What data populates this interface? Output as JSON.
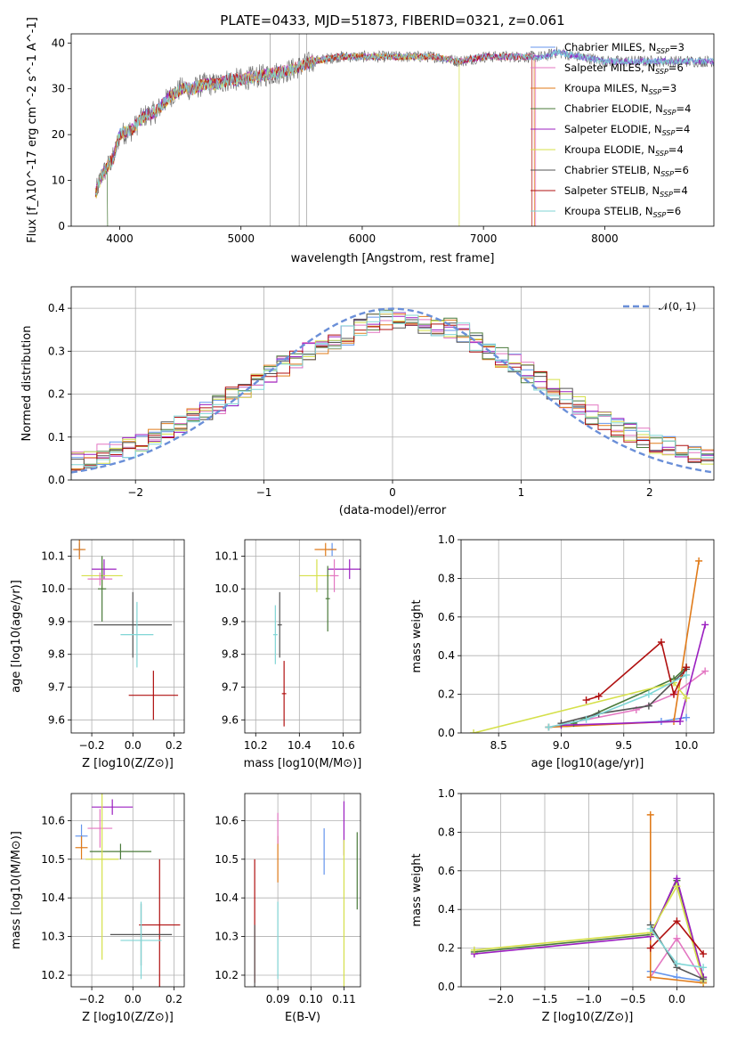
{
  "colors": [
    "#6495ed",
    "#e377c2",
    "#e07b1a",
    "#4a7a3a",
    "#9b1fc0",
    "#d5e04a",
    "#555555",
    "#b01010",
    "#80d6d6"
  ],
  "chart_data": [
    {
      "id": "spectrum",
      "type": "line",
      "title": "PLATE=0433, MJD=51873, FIBERID=0321, z=0.061",
      "xlabel": "wavelength [Angstrom, rest frame]",
      "ylabel": "Flux [f_λ10^-17 erg cm^-2 s^-1 A^-1]",
      "xlim": [
        3600,
        8900
      ],
      "ylim": [
        0,
        42
      ],
      "xticks": [
        "4000",
        "5000",
        "6000",
        "7000",
        "8000"
      ],
      "yticks": [
        "0",
        "10",
        "20",
        "30",
        "40"
      ],
      "grid": false,
      "legend_position": "top-right",
      "legend": [
        {
          "name": "Chabrier MILES",
          "nssp": "3"
        },
        {
          "name": "Salpeter MILES",
          "nssp": "6"
        },
        {
          "name": "Kroupa MILES",
          "nssp": "3"
        },
        {
          "name": "Chabrier ELODIE",
          "nssp": "4"
        },
        {
          "name": "Salpeter ELODIE",
          "nssp": "4"
        },
        {
          "name": "Kroupa ELODIE",
          "nssp": "4"
        },
        {
          "name": "Chabrier STELIB",
          "nssp": "6"
        },
        {
          "name": "Salpeter STELIB",
          "nssp": "4"
        },
        {
          "name": "Kroupa STELIB",
          "nssp": "6"
        }
      ],
      "continuum": {
        "x": [
          3800,
          3850,
          3900,
          3950,
          4000,
          4100,
          4200,
          4300,
          4400,
          4500,
          4600,
          4700,
          4800,
          4900,
          5000,
          5200,
          5400,
          5600,
          5800,
          6000,
          6200,
          6400,
          6600,
          6800,
          7000,
          7200,
          7400,
          7500,
          7600,
          7800,
          8000,
          8200,
          8400,
          8600,
          8800
        ],
        "y": [
          7,
          11,
          13,
          15,
          20,
          21,
          24,
          25,
          28,
          30,
          30,
          31,
          31,
          32,
          32,
          33,
          34,
          36,
          37,
          37,
          37,
          37,
          37,
          36,
          37,
          37,
          37,
          37,
          38,
          37,
          36,
          36,
          36,
          36,
          36
        ]
      },
      "cutoffs": [
        {
          "series": 3,
          "x": 3900
        },
        {
          "series": 5,
          "x": 6800
        },
        {
          "series": 7,
          "x": 7400
        },
        {
          "series": 2,
          "x": 7420
        },
        {
          "series": 1,
          "x": 7430
        }
      ]
    },
    {
      "id": "residuals",
      "type": "histogram",
      "xlabel": "(data-model)/error",
      "ylabel": "Normed distribution",
      "xlim": [
        -2.5,
        2.5
      ],
      "ylim": [
        0,
        0.45
      ],
      "xticks": [
        "−2",
        "−1",
        "0",
        "1",
        "2"
      ],
      "yticks": [
        "0.0",
        "0.1",
        "0.2",
        "0.3",
        "0.4"
      ],
      "grid": true,
      "bin_width": 0.1,
      "legend_position": "top-right",
      "reference_curve": {
        "name": "𝒩(0, 1)",
        "mean": 0,
        "sigma": 1
      },
      "envelope": {
        "x": [
          -2.5,
          -2.0,
          -1.5,
          -1.0,
          -0.5,
          0.0,
          0.5,
          1.0,
          1.5,
          2.0,
          2.5
        ],
        "y": [
          0.04,
          0.08,
          0.15,
          0.24,
          0.32,
          0.38,
          0.35,
          0.26,
          0.16,
          0.09,
          0.05
        ]
      }
    },
    {
      "id": "age-vs-Z",
      "type": "errorbar",
      "xlabel": "Z [log10(Z/Z⊙)]",
      "ylabel": "age  [log10(age/yr)]",
      "xlim": [
        -0.3,
        0.25
      ],
      "ylim": [
        9.56,
        10.15
      ],
      "xticks": [
        "−0.2",
        "0.0",
        "0.2"
      ],
      "yticks": [
        "9.6",
        "9.7",
        "9.8",
        "9.9",
        "10.0",
        "10.1"
      ],
      "grid": true,
      "points": [
        {
          "series": 0,
          "x": -0.26,
          "xerr": 0.02,
          "y": 10.12,
          "yerr": 0.02
        },
        {
          "series": 2,
          "x": -0.26,
          "xerr": 0.03,
          "y": 10.12,
          "yerr": 0.03
        },
        {
          "series": 4,
          "x": -0.14,
          "xerr": 0.06,
          "y": 10.06,
          "yerr": 0.03
        },
        {
          "series": 5,
          "x": -0.15,
          "xerr": 0.1,
          "y": 10.04,
          "yerr": 0.04
        },
        {
          "series": 3,
          "x": -0.15,
          "xerr": 0.02,
          "y": 10.0,
          "yerr": 0.1
        },
        {
          "series": 1,
          "x": -0.16,
          "xerr": 0.06,
          "y": 10.03,
          "yerr": 0.02
        },
        {
          "series": 6,
          "x": 0.0,
          "xerr": 0.19,
          "y": 9.89,
          "yerr": 0.1
        },
        {
          "series": 8,
          "x": 0.02,
          "xerr": 0.08,
          "y": 9.86,
          "yerr": 0.1
        },
        {
          "series": 7,
          "x": 0.1,
          "xerr": 0.12,
          "y": 9.675,
          "yerr": 0.075
        }
      ]
    },
    {
      "id": "age-vs-mass",
      "type": "errorbar",
      "xlabel": "mass [log10(M/M⊙)]",
      "ylabel": "",
      "xlim": [
        10.15,
        10.68
      ],
      "ylim": [
        9.56,
        10.15
      ],
      "xticks": [
        "10.2",
        "10.4",
        "10.6"
      ],
      "yticks": [
        "9.6",
        "9.7",
        "9.8",
        "9.9",
        "10.0",
        "10.1"
      ],
      "grid": true,
      "points": [
        {
          "series": 0,
          "x": 10.55,
          "xerr": 0.02,
          "y": 10.12,
          "yerr": 0.02
        },
        {
          "series": 2,
          "x": 10.52,
          "xerr": 0.05,
          "y": 10.12,
          "yerr": 0.02
        },
        {
          "series": 4,
          "x": 10.63,
          "xerr": 0.1,
          "y": 10.06,
          "yerr": 0.03
        },
        {
          "series": 5,
          "x": 10.48,
          "xerr": 0.08,
          "y": 10.04,
          "yerr": 0.05
        },
        {
          "series": 1,
          "x": 10.56,
          "xerr": 0.02,
          "y": 10.04,
          "yerr": 0.05
        },
        {
          "series": 3,
          "x": 10.53,
          "xerr": 0.01,
          "y": 9.97,
          "yerr": 0.1
        },
        {
          "series": 6,
          "x": 10.31,
          "xerr": 0.01,
          "y": 9.89,
          "yerr": 0.1
        },
        {
          "series": 8,
          "x": 10.29,
          "xerr": 0.01,
          "y": 9.86,
          "yerr": 0.09
        },
        {
          "series": 7,
          "x": 10.33,
          "xerr": 0.01,
          "y": 9.68,
          "yerr": 0.1
        }
      ]
    },
    {
      "id": "weight-vs-age",
      "type": "line",
      "xlabel": "age  [log10(age/yr)]",
      "ylabel": "mass weight",
      "xlim": [
        8.2,
        10.22
      ],
      "ylim": [
        0,
        1.0
      ],
      "xticks": [
        "8.5",
        "9.0",
        "9.5",
        "10.0"
      ],
      "yticks": [
        "0.0",
        "0.2",
        "0.4",
        "0.6",
        "0.8",
        "1.0"
      ],
      "grid": true,
      "series": [
        {
          "series": 0,
          "x": [
            8.9,
            9.8,
            10.0
          ],
          "y": [
            0.03,
            0.06,
            0.08
          ]
        },
        {
          "series": 1,
          "x": [
            8.9,
            9.6,
            9.9,
            10.15
          ],
          "y": [
            0.03,
            0.12,
            0.2,
            0.32
          ]
        },
        {
          "series": 2,
          "x": [
            8.9,
            9.9,
            10.1
          ],
          "y": [
            0.03,
            0.06,
            0.89
          ]
        },
        {
          "series": 3,
          "x": [
            9.1,
            9.9,
            10.0
          ],
          "y": [
            0.05,
            0.28,
            0.34
          ]
        },
        {
          "series": 4,
          "x": [
            9.0,
            9.95,
            10.15
          ],
          "y": [
            0.04,
            0.06,
            0.56
          ]
        },
        {
          "series": 5,
          "x": [
            8.3,
            9.9,
            10.0
          ],
          "y": [
            0.0,
            0.26,
            0.18
          ]
        },
        {
          "series": 6,
          "x": [
            9.0,
            9.3,
            9.7,
            10.0
          ],
          "y": [
            0.05,
            0.1,
            0.14,
            0.33
          ]
        },
        {
          "series": 7,
          "x": [
            9.2,
            9.3,
            9.8,
            9.9,
            10.0
          ],
          "y": [
            0.17,
            0.19,
            0.47,
            0.2,
            0.34
          ]
        },
        {
          "series": 8,
          "x": [
            8.9,
            9.2,
            9.7,
            10.0
          ],
          "y": [
            0.03,
            0.07,
            0.2,
            0.3
          ]
        }
      ]
    },
    {
      "id": "mass-vs-Z",
      "type": "errorbar",
      "xlabel": "Z [log10(Z/Z⊙)]",
      "ylabel": "mass [log10(M/M⊙)]",
      "xlim": [
        -0.3,
        0.25
      ],
      "ylim": [
        10.17,
        10.67
      ],
      "xticks": [
        "−0.2",
        "0.0",
        "0.2"
      ],
      "yticks": [
        "10.2",
        "10.3",
        "10.4",
        "10.5",
        "10.6"
      ],
      "grid": true,
      "points": [
        {
          "series": 4,
          "x": -0.1,
          "xerr": 0.1,
          "y": 10.635,
          "yerr": 0.02
        },
        {
          "series": 1,
          "x": -0.16,
          "xerr": 0.06,
          "y": 10.58,
          "yerr": 0.05
        },
        {
          "series": 0,
          "x": -0.25,
          "xerr": 0.03,
          "y": 10.56,
          "yerr": 0.03
        },
        {
          "series": 2,
          "x": -0.25,
          "xerr": 0.03,
          "y": 10.53,
          "yerr": 0.03
        },
        {
          "series": 3,
          "x": -0.06,
          "xerr": 0.15,
          "y": 10.52,
          "yerr": 0.02
        },
        {
          "series": 5,
          "x": -0.15,
          "xerr": 0.08,
          "y": 10.5,
          "yerr": 0.26
        },
        {
          "series": 7,
          "x": 0.13,
          "xerr": 0.1,
          "y": 10.33,
          "yerr": 0.17
        },
        {
          "series": 6,
          "x": 0.04,
          "xerr": 0.15,
          "y": 10.305,
          "yerr": 0.08
        },
        {
          "series": 8,
          "x": 0.04,
          "xerr": 0.1,
          "y": 10.29,
          "yerr": 0.1
        }
      ]
    },
    {
      "id": "mass-vs-ebv",
      "type": "errorbar",
      "xlabel": "E(B-V)",
      "ylabel": "",
      "xlim": [
        0.08,
        0.115
      ],
      "ylim": [
        10.17,
        10.67
      ],
      "xticks": [
        "0.09",
        "0.10",
        "0.11"
      ],
      "yticks": [
        "10.2",
        "10.3",
        "10.4",
        "10.5",
        "10.6"
      ],
      "grid": true,
      "points": [
        {
          "series": 7,
          "x": 0.083,
          "xerr": 0,
          "y": 10.34,
          "yerr": 0.16
        },
        {
          "series": 6,
          "x": 0.083,
          "xerr": 0,
          "y": 10.25,
          "yerr": 0.08
        },
        {
          "series": 2,
          "x": 0.09,
          "xerr": 0,
          "y": 10.5,
          "yerr": 0.06
        },
        {
          "series": 1,
          "x": 0.09,
          "xerr": 0,
          "y": 10.58,
          "yerr": 0.04
        },
        {
          "series": 8,
          "x": 0.09,
          "xerr": 0,
          "y": 10.29,
          "yerr": 0.1
        },
        {
          "series": 0,
          "x": 0.104,
          "xerr": 0,
          "y": 10.52,
          "yerr": 0.06
        },
        {
          "series": 4,
          "x": 0.11,
          "xerr": 0,
          "y": 10.58,
          "yerr": 0.07
        },
        {
          "series": 5,
          "x": 0.11,
          "xerr": 0,
          "y": 10.35,
          "yerr": 0.2
        },
        {
          "series": 3,
          "x": 0.114,
          "xerr": 0,
          "y": 10.47,
          "yerr": 0.1
        }
      ]
    },
    {
      "id": "weight-vs-Z",
      "type": "line",
      "xlabel": "Z [log10(Z/Z⊙)]",
      "ylabel": "mass weight",
      "xlim": [
        -2.45,
        0.42
      ],
      "ylim": [
        0,
        1.0
      ],
      "xticks": [
        "−2.0",
        "−1.5",
        "−1.0",
        "−0.5",
        "0.0"
      ],
      "yticks": [
        "0.0",
        "0.2",
        "0.4",
        "0.6",
        "0.8",
        "1.0"
      ],
      "grid": true,
      "series": [
        {
          "series": 0,
          "x": [
            -0.3,
            0.0,
            0.3
          ],
          "y": [
            0.08,
            0.05,
            0.03
          ]
        },
        {
          "series": 1,
          "x": [
            -0.3,
            0.0,
            0.3
          ],
          "y": [
            0.05,
            0.25,
            0.03
          ]
        },
        {
          "series": 2,
          "x": [
            -0.3,
            -0.3,
            0.3
          ],
          "y": [
            0.89,
            0.05,
            0.02
          ]
        },
        {
          "series": 3,
          "x": [
            -2.3,
            -0.3,
            0.0,
            0.3
          ],
          "y": [
            0.18,
            0.27,
            0.55,
            0.05
          ]
        },
        {
          "series": 4,
          "x": [
            -2.3,
            -0.3,
            0.0,
            0.3
          ],
          "y": [
            0.17,
            0.26,
            0.56,
            0.05
          ]
        },
        {
          "series": 5,
          "x": [
            -2.3,
            -0.3,
            0.0,
            0.3
          ],
          "y": [
            0.19,
            0.28,
            0.52,
            0.03
          ]
        },
        {
          "series": 6,
          "x": [
            -0.3,
            0.0,
            0.3
          ],
          "y": [
            0.32,
            0.1,
            0.04
          ]
        },
        {
          "series": 7,
          "x": [
            -0.3,
            0.0,
            0.3
          ],
          "y": [
            0.2,
            0.34,
            0.17
          ]
        },
        {
          "series": 8,
          "x": [
            -0.3,
            0.0,
            0.3
          ],
          "y": [
            0.3,
            0.12,
            0.1
          ]
        }
      ]
    }
  ]
}
